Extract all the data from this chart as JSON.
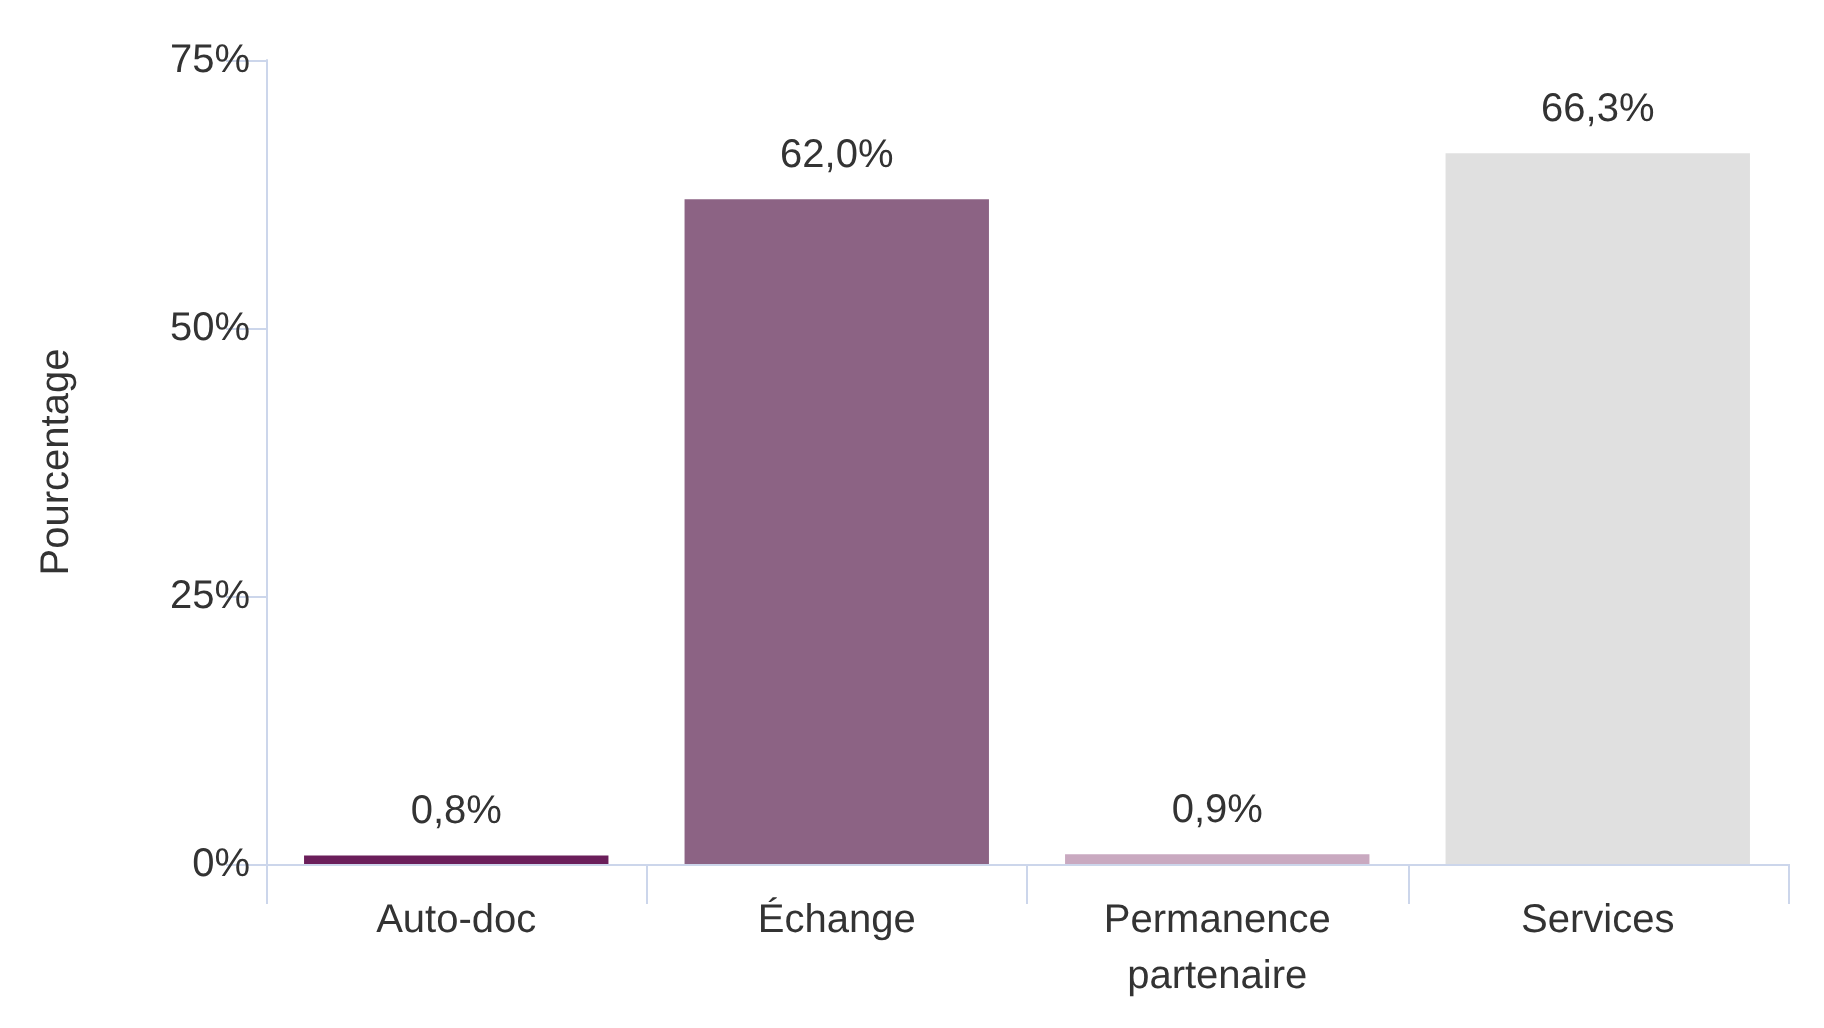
{
  "chart_data": {
    "type": "bar",
    "ylabel": "Pourcentage",
    "categories": [
      "Auto-doc",
      "Échange",
      "Permanence\npartenaire",
      "Services"
    ],
    "values": [
      0.8,
      62.0,
      0.9,
      66.3
    ],
    "colors": [
      "#6b1e5a",
      "#8c6384",
      "#c9a9c0",
      "#e0e0e0"
    ],
    "value_labels": [
      "0,8%",
      "62,0%",
      "0,9%",
      "66,3%"
    ],
    "ylim": [
      0,
      75
    ],
    "yticks": [
      {
        "value": 0,
        "label": "0%"
      },
      {
        "value": 25,
        "label": "25%"
      },
      {
        "value": 50,
        "label": "50%"
      },
      {
        "value": 75,
        "label": "75%"
      }
    ],
    "grid": false
  }
}
